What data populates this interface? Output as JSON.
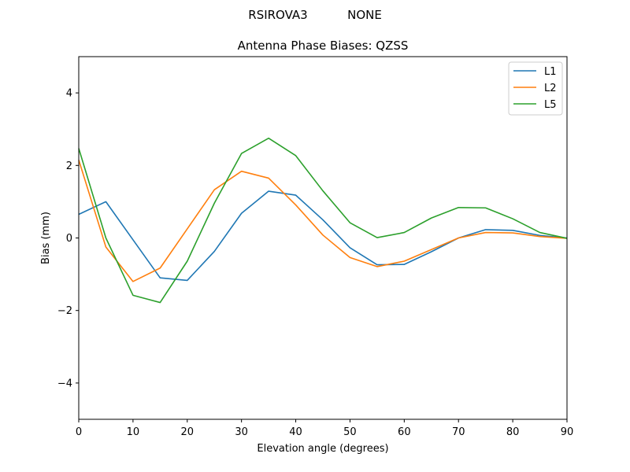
{
  "chart_data": {
    "type": "line",
    "suptitle_left": "RSIROVA3",
    "suptitle_right": "NONE",
    "title": "Antenna Phase Biases: QZSS",
    "xlabel": "Elevation angle (degrees)",
    "ylabel": "Bias (mm)",
    "xlim": [
      0,
      90
    ],
    "ylim": [
      -5,
      5
    ],
    "xticks": [
      0,
      10,
      20,
      30,
      40,
      50,
      60,
      70,
      80,
      90
    ],
    "yticks": [
      -4,
      -2,
      0,
      2,
      4
    ],
    "xtick_labels": [
      "0",
      "10",
      "20",
      "30",
      "40",
      "50",
      "60",
      "70",
      "80",
      "90"
    ],
    "ytick_labels": [
      "−4",
      "−2",
      "0",
      "2",
      "4"
    ],
    "grid": false,
    "legend_position": "top-right",
    "x": [
      0,
      5,
      10,
      15,
      20,
      25,
      30,
      35,
      40,
      45,
      50,
      55,
      60,
      65,
      70,
      75,
      80,
      85,
      90
    ],
    "series": [
      {
        "name": "L1",
        "color": "#1f77b4",
        "values": [
          0.65,
          1.0,
          -0.05,
          -1.1,
          -1.17,
          -0.37,
          0.68,
          1.29,
          1.18,
          0.5,
          -0.27,
          -0.74,
          -0.73,
          -0.38,
          0.0,
          0.23,
          0.21,
          0.07,
          0.0
        ]
      },
      {
        "name": "L2",
        "color": "#ff7f0e",
        "values": [
          2.15,
          -0.25,
          -1.2,
          -0.83,
          0.25,
          1.33,
          1.84,
          1.65,
          0.91,
          0.08,
          -0.54,
          -0.79,
          -0.64,
          -0.32,
          0.0,
          0.15,
          0.14,
          0.04,
          -0.01
        ]
      },
      {
        "name": "L5",
        "color": "#2ca02c",
        "values": [
          2.47,
          0.0,
          -1.58,
          -1.78,
          -0.64,
          0.96,
          2.33,
          2.75,
          2.27,
          1.3,
          0.42,
          0.01,
          0.15,
          0.55,
          0.84,
          0.83,
          0.53,
          0.15,
          -0.01
        ]
      }
    ]
  }
}
